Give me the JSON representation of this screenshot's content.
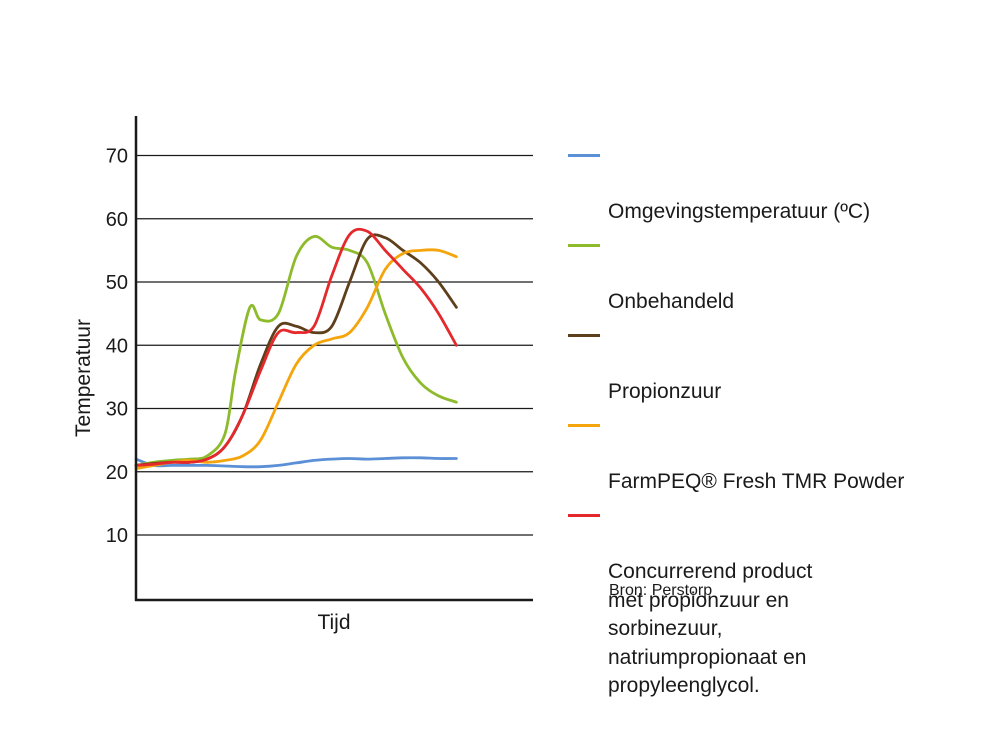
{
  "chart_data": {
    "type": "line",
    "xlabel": "Tijd",
    "ylabel": "Temperatuur",
    "ylim": [
      0,
      70
    ],
    "xlim": [
      0,
      100
    ],
    "yticks": [
      10,
      20,
      30,
      40,
      50,
      60,
      70
    ],
    "grid": true,
    "legend_position": "right",
    "series": [
      {
        "name": "Omgevingstemperatuur (ºC)",
        "color": "#5b8fd6",
        "x": [
          0,
          5,
          10,
          20,
          30,
          35,
          40,
          45,
          50,
          55,
          60,
          65,
          70,
          75,
          80,
          85,
          90
        ],
        "y": [
          22,
          21,
          21,
          21,
          20.8,
          20.8,
          21,
          21.4,
          21.8,
          22,
          22.1,
          22,
          22.1,
          22.2,
          22.2,
          22.1,
          22.1
        ]
      },
      {
        "name": "Onbehandeld",
        "color": "#8dbb2c",
        "x": [
          0,
          5,
          10,
          15,
          20,
          25,
          28,
          32,
          35,
          40,
          45,
          50,
          55,
          60,
          65,
          70,
          75,
          80,
          85,
          90
        ],
        "y": [
          21,
          21.5,
          21.8,
          22,
          22.5,
          26,
          36,
          46,
          44,
          45,
          54,
          57.2,
          55.5,
          55,
          53,
          45,
          38,
          34,
          32,
          31
        ]
      },
      {
        "name": "Propionzuur",
        "color": "#5e3f1c",
        "x": [
          0,
          5,
          10,
          15,
          20,
          25,
          30,
          35,
          40,
          45,
          50,
          55,
          60,
          65,
          70,
          75,
          80,
          85,
          90
        ],
        "y": [
          21,
          21.3,
          21.5,
          21.5,
          22,
          24,
          29,
          37,
          43,
          43,
          42,
          43,
          50,
          56.8,
          57,
          55,
          53,
          50,
          46
        ]
      },
      {
        "name": "FarmPEQ® Fresh TMR Powder",
        "color": "#f5a50c",
        "x": [
          0,
          5,
          10,
          15,
          20,
          25,
          30,
          35,
          40,
          45,
          50,
          55,
          60,
          65,
          70,
          75,
          80,
          85,
          90
        ],
        "y": [
          20.5,
          21,
          21.5,
          21.8,
          21.5,
          21.8,
          22.5,
          25,
          31,
          37,
          40,
          41,
          42,
          46,
          52,
          54.5,
          55,
          55,
          54
        ]
      },
      {
        "name": "Concurrerend product\nmet propionzuur en\nsorbinezuur,\nnatriumpropionaat en\npropyleenglycol.",
        "color": "#e5282b",
        "x": [
          0,
          5,
          10,
          15,
          20,
          25,
          30,
          35,
          40,
          45,
          50,
          55,
          60,
          65,
          70,
          75,
          80,
          85,
          90
        ],
        "y": [
          21,
          21.2,
          21.5,
          21.5,
          22,
          24,
          29,
          36,
          42,
          42,
          43,
          51,
          57.5,
          58,
          55,
          52,
          49,
          45,
          40
        ]
      }
    ]
  },
  "source": "Bron: Perstorp"
}
